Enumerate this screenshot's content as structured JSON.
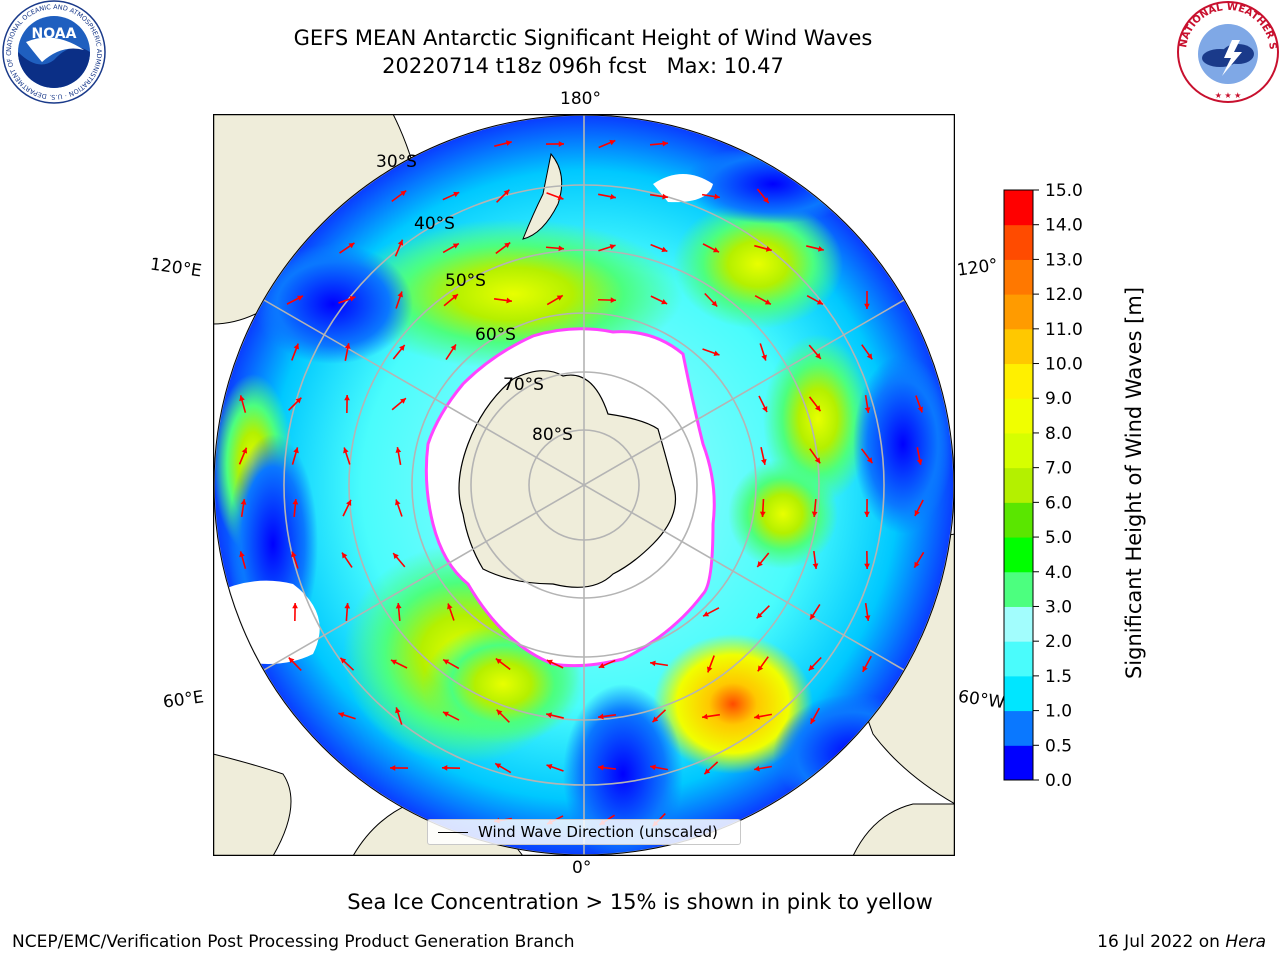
{
  "header": {
    "title": "GEFS MEAN Antarctic Significant Height of Wind Waves",
    "subtitle": "20220714 t18z 096h fcst   Max: 10.47",
    "noaa_logo_text": "NOAA",
    "noaa_logo_ring_text": "NATIONAL OCEANIC AND ATMOSPHERIC ADMINISTRATION · U.S. DEPARTMENT OF COMMERCE",
    "nws_logo_ring_text": "NATIONAL WEATHER SERVICE"
  },
  "map": {
    "projection": "south-polar-stereographic",
    "longitude_labels": [
      "180°",
      "120°E",
      "120°",
      "60°E",
      "60°W",
      "0°"
    ],
    "latitude_labels": [
      "30°S",
      "40°S",
      "50°S",
      "60°S",
      "70°S",
      "80°S"
    ],
    "legend_label": "Wind Wave Direction (unscaled)",
    "max_value": 10.47,
    "colors": {
      "land": "#efedda",
      "ice": "#ffffff",
      "grid": "#b4b4b4",
      "arrow": "#ff0000",
      "ice_edge": "#ff44ff"
    }
  },
  "colorbar": {
    "title": "Significant Height of Wind Waves [m]",
    "ticks": [
      "0.0",
      "0.5",
      "1.0",
      "1.5",
      "2.0",
      "3.0",
      "4.0",
      "5.0",
      "6.0",
      "7.0",
      "8.0",
      "9.0",
      "10.0",
      "11.0",
      "12.0",
      "13.0",
      "14.0",
      "15.0"
    ],
    "colors": [
      "#0000ff",
      "#0a78ff",
      "#00e6ff",
      "#4afcfc",
      "#a2fdfd",
      "#4cff7f",
      "#00ff00",
      "#5ae600",
      "#b4f000",
      "#d6ff00",
      "#f0ff00",
      "#fff000",
      "#ffc800",
      "#ff9b00",
      "#ff7800",
      "#ff4b00",
      "#ff0000"
    ]
  },
  "footer": {
    "note": "Sea Ice Concentration > 15% is shown in pink to yellow",
    "credit": "NCEP/EMC/Verification Post Processing Product Generation Branch",
    "date": "16 Jul 2022 on ",
    "machine": "Hera"
  }
}
